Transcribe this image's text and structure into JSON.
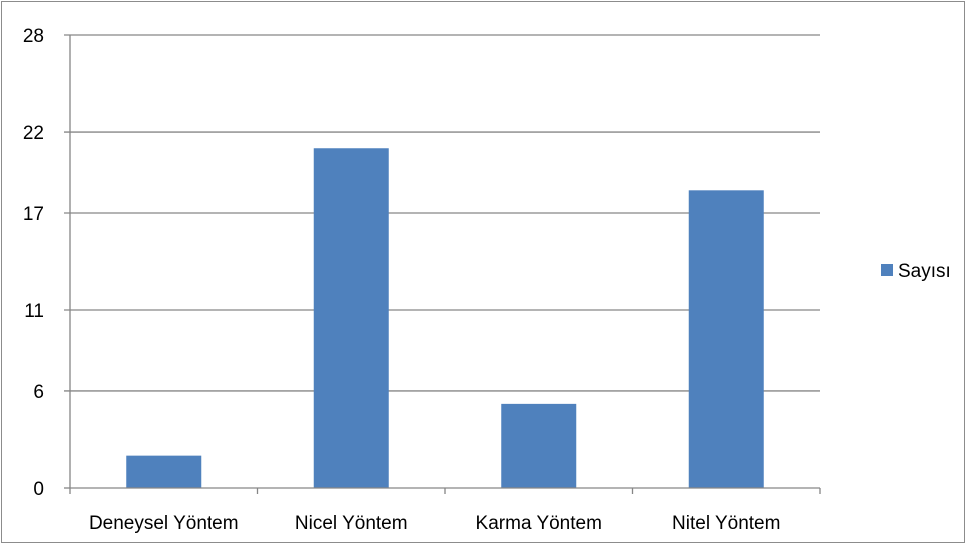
{
  "chart_data": {
    "type": "bar",
    "categories": [
      "Deneysel Yöntem",
      "Nicel Yöntem",
      "Karma Yöntem",
      "Nitel Yöntem"
    ],
    "series": [
      {
        "name": "Sayısı",
        "values": [
          2,
          21,
          5.2,
          18.4
        ],
        "color": "#4f81bd"
      }
    ],
    "yticks": [
      "0",
      "6",
      "11",
      "17",
      "22",
      "28"
    ],
    "ylim": [
      0,
      28
    ],
    "grid": true,
    "legend_position": "right",
    "title": "",
    "xlabel": "",
    "ylabel": ""
  }
}
